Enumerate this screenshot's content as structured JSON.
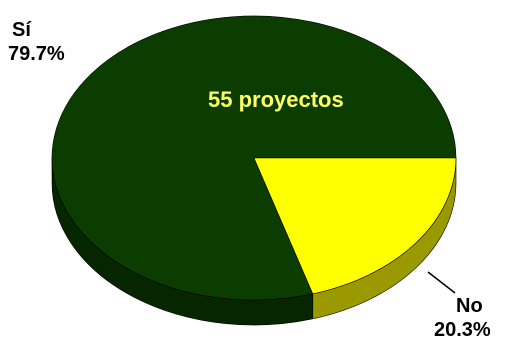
{
  "chart_data": {
    "type": "pie",
    "style": "3d",
    "slices": [
      {
        "label": "Sí",
        "percent_text": "79.7%",
        "value": 79.7,
        "color": "#0b3d00",
        "side_color": "#062600"
      },
      {
        "label": "No",
        "percent_text": "20.3%",
        "value": 20.3,
        "color": "#ffff00",
        "side_color": "#9a9a00"
      }
    ],
    "annotation": {
      "text": "55 proyectos",
      "color": "#ffff66"
    },
    "leader_line_color": "#000000"
  }
}
